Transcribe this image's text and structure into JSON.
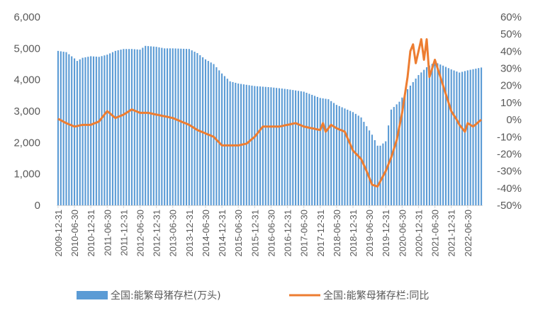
{
  "chart_data": {
    "type": "bar",
    "x_start": "2009-12-31",
    "x_end": "2022-11-30",
    "x_frequency": "monthly",
    "x_tick_labels": [
      "2009-12-31",
      "2010-06-30",
      "2010-12-31",
      "2011-06-30",
      "2011-12-31",
      "2012-06-30",
      "2012-12-31",
      "2013-06-30",
      "2013-12-31",
      "2014-06-30",
      "2014-12-31",
      "2015-06-30",
      "2015-12-31",
      "2016-06-30",
      "2016-12-31",
      "2017-06-30",
      "2017-12-31",
      "2018-06-30",
      "2018-12-31",
      "2019-06-30",
      "2019-12-31",
      "2020-06-30",
      "2020-12-31",
      "2021-06-30",
      "2021-12-31",
      "2022-06-30"
    ],
    "y_left_ticks": [
      "0",
      "1,000",
      "2,000",
      "3,000",
      "4,000",
      "5,000",
      "6,000"
    ],
    "y_left_range": [
      0,
      6000
    ],
    "y_right_ticks": [
      "-50%",
      "-40%",
      "-30%",
      "-20%",
      "-10%",
      "0%",
      "10%",
      "20%",
      "30%",
      "40%",
      "50%",
      "60%"
    ],
    "y_right_range": [
      -50,
      60
    ],
    "legend_position": "bottom",
    "colors": {
      "bars": "#5b9bd5",
      "line": "#ed7d31",
      "axis": "#d9d9d9",
      "text": "#595959"
    },
    "series": [
      {
        "name": "全国:能繁母猪存栏(万头)",
        "type": "bar",
        "axis": "left",
        "anchors": [
          [
            "2009-12-31",
            4920
          ],
          [
            "2010-03-31",
            4880
          ],
          [
            "2010-06-30",
            4680
          ],
          [
            "2010-07-31",
            4600
          ],
          [
            "2010-09-30",
            4700
          ],
          [
            "2010-12-31",
            4750
          ],
          [
            "2011-03-31",
            4730
          ],
          [
            "2011-06-30",
            4800
          ],
          [
            "2011-09-30",
            4920
          ],
          [
            "2011-12-31",
            4980
          ],
          [
            "2012-03-31",
            4980
          ],
          [
            "2012-06-30",
            4960
          ],
          [
            "2012-08-31",
            5080
          ],
          [
            "2012-12-31",
            5050
          ],
          [
            "2013-03-31",
            5000
          ],
          [
            "2013-06-30",
            5000
          ],
          [
            "2013-12-31",
            4980
          ],
          [
            "2014-03-31",
            4850
          ],
          [
            "2014-06-30",
            4650
          ],
          [
            "2014-09-31",
            4500
          ],
          [
            "2014-12-31",
            4200
          ],
          [
            "2015-03-31",
            3950
          ],
          [
            "2015-06-30",
            3880
          ],
          [
            "2015-12-31",
            3800
          ],
          [
            "2016-06-30",
            3760
          ],
          [
            "2016-12-31",
            3700
          ],
          [
            "2017-06-30",
            3620
          ],
          [
            "2017-12-31",
            3420
          ],
          [
            "2018-03-31",
            3380
          ],
          [
            "2018-06-30",
            3200
          ],
          [
            "2018-12-31",
            2970
          ],
          [
            "2019-03-31",
            2800
          ],
          [
            "2019-05-31",
            2520
          ],
          [
            "2019-07-31",
            2250
          ],
          [
            "2019-09-30",
            1900
          ],
          [
            "2019-10-31",
            1900
          ],
          [
            "2019-12-31",
            2040
          ],
          [
            "2020-02-29",
            3050
          ],
          [
            "2020-05-31",
            3300
          ],
          [
            "2020-08-31",
            3700
          ],
          [
            "2020-12-31",
            4150
          ],
          [
            "2021-03-31",
            4400
          ],
          [
            "2021-06-30",
            4560
          ],
          [
            "2021-09-30",
            4450
          ],
          [
            "2021-12-31",
            4330
          ],
          [
            "2022-03-31",
            4230
          ],
          [
            "2022-06-30",
            4300
          ],
          [
            "2022-11-30",
            4390
          ]
        ]
      },
      {
        "name": "全国:能繁母猪存栏:同比",
        "type": "line",
        "axis": "right",
        "anchors": [
          [
            "2009-12-31",
            0.5
          ],
          [
            "2010-03-31",
            -2
          ],
          [
            "2010-06-30",
            -4
          ],
          [
            "2010-09-30",
            -3
          ],
          [
            "2010-12-31",
            -3
          ],
          [
            "2011-03-31",
            -1
          ],
          [
            "2011-06-30",
            5
          ],
          [
            "2011-09-30",
            1
          ],
          [
            "2011-12-31",
            3
          ],
          [
            "2012-03-31",
            6
          ],
          [
            "2012-06-30",
            4
          ],
          [
            "2012-09-30",
            4
          ],
          [
            "2012-12-31",
            3
          ],
          [
            "2013-03-31",
            2
          ],
          [
            "2013-06-30",
            1
          ],
          [
            "2013-09-30",
            -1
          ],
          [
            "2013-12-31",
            -3
          ],
          [
            "2014-03-31",
            -6
          ],
          [
            "2014-06-30",
            -8
          ],
          [
            "2014-09-30",
            -10
          ],
          [
            "2014-12-31",
            -15
          ],
          [
            "2015-03-31",
            -15
          ],
          [
            "2015-06-30",
            -15
          ],
          [
            "2015-09-30",
            -14
          ],
          [
            "2015-12-31",
            -10
          ],
          [
            "2016-03-31",
            -4
          ],
          [
            "2016-06-30",
            -4
          ],
          [
            "2016-09-30",
            -4
          ],
          [
            "2016-12-31",
            -3
          ],
          [
            "2017-03-31",
            -2
          ],
          [
            "2017-06-30",
            -4
          ],
          [
            "2017-09-30",
            -5
          ],
          [
            "2017-12-31",
            -6
          ],
          [
            "2018-01-31",
            -2
          ],
          [
            "2018-02-28",
            -7
          ],
          [
            "2018-04-30",
            -3
          ],
          [
            "2018-06-30",
            -5
          ],
          [
            "2018-09-30",
            -7
          ],
          [
            "2018-12-31",
            -18
          ],
          [
            "2019-03-31",
            -23
          ],
          [
            "2019-05-31",
            -30
          ],
          [
            "2019-07-31",
            -38
          ],
          [
            "2019-09-30",
            -39
          ],
          [
            "2019-12-31",
            -30
          ],
          [
            "2020-02-29",
            -22
          ],
          [
            "2020-04-30",
            -12
          ],
          [
            "2020-06-30",
            4
          ],
          [
            "2020-08-31",
            25
          ],
          [
            "2020-09-30",
            40
          ],
          [
            "2020-10-31",
            44
          ],
          [
            "2020-11-30",
            33
          ],
          [
            "2021-01-31",
            47
          ],
          [
            "2021-02-28",
            35
          ],
          [
            "2021-03-31",
            47
          ],
          [
            "2021-04-30",
            25
          ],
          [
            "2021-06-30",
            35
          ],
          [
            "2021-09-30",
            20
          ],
          [
            "2021-12-31",
            5
          ],
          [
            "2022-02-28",
            0
          ],
          [
            "2022-03-31",
            -3
          ],
          [
            "2022-05-31",
            -7
          ],
          [
            "2022-06-30",
            -2
          ],
          [
            "2022-08-31",
            -4
          ],
          [
            "2022-11-30",
            0
          ]
        ]
      }
    ]
  }
}
